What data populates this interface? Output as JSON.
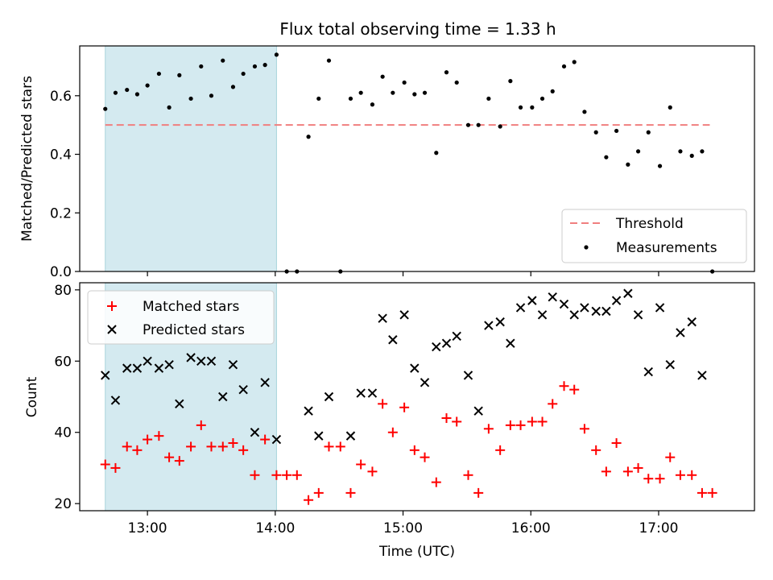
{
  "chart_data": [
    {
      "type": "scatter",
      "title": "Flux total observing time = 1.33 h",
      "ylabel": "Matched/Predicted stars",
      "xlabel": "",
      "x_range_hours": [
        12.47,
        17.75
      ],
      "ylim": [
        0,
        0.77
      ],
      "yticks": [
        0.0,
        0.2,
        0.4,
        0.6
      ],
      "ytick_labels": [
        "0.0",
        "0.2",
        "0.4",
        "0.6"
      ],
      "highlight_span_hours": [
        12.67,
        14.01
      ],
      "highlight_color": "#d4eaf0",
      "threshold": {
        "value": 0.5,
        "x_start": 12.67,
        "x_end": 17.4,
        "color": "#f07f7f"
      },
      "legend": {
        "placement": "lower-right",
        "entries": [
          "Threshold",
          "Measurements"
        ]
      },
      "series": [
        {
          "name": "Measurements",
          "color": "#000000",
          "x": [
            12.67,
            12.75,
            12.84,
            12.92,
            13.0,
            13.09,
            13.17,
            13.25,
            13.34,
            13.42,
            13.5,
            13.59,
            13.67,
            13.75,
            13.84,
            13.92,
            14.01,
            14.09,
            14.17,
            14.26,
            14.34,
            14.42,
            14.51,
            14.59,
            14.67,
            14.76,
            14.84,
            14.92,
            15.01,
            15.09,
            15.17,
            15.26,
            15.34,
            15.42,
            15.51,
            15.59,
            15.67,
            15.76,
            15.84,
            15.92,
            16.01,
            16.09,
            16.17,
            16.26,
            16.34,
            16.42,
            16.51,
            16.59,
            16.67,
            16.76,
            16.84,
            16.92,
            17.01,
            17.09,
            17.17,
            17.26,
            17.34,
            17.42
          ],
          "y": [
            0.555,
            0.61,
            0.62,
            0.605,
            0.635,
            0.675,
            0.56,
            0.67,
            0.59,
            0.7,
            0.6,
            0.72,
            0.63,
            0.675,
            0.7,
            0.705,
            0.74,
            0.0,
            0.0,
            0.46,
            0.59,
            0.72,
            0.0,
            0.59,
            0.61,
            0.57,
            0.665,
            0.61,
            0.645,
            0.605,
            0.61,
            0.405,
            0.68,
            0.645,
            0.5,
            0.5,
            0.59,
            0.495,
            0.65,
            0.56,
            0.56,
            0.59,
            0.615,
            0.7,
            0.715,
            0.545,
            0.475,
            0.39,
            0.48,
            0.365,
            0.41,
            0.475,
            0.36,
            0.56,
            0.41,
            0.395,
            0.41,
            0.0
          ]
        }
      ]
    },
    {
      "type": "scatter",
      "title": "",
      "ylabel": "Count",
      "xlabel": "Time (UTC)",
      "x_range_hours": [
        12.47,
        17.75
      ],
      "xticks_hours": [
        13,
        14,
        15,
        16,
        17
      ],
      "xtick_labels": [
        "13:00",
        "14:00",
        "15:00",
        "16:00",
        "17:00"
      ],
      "ylim": [
        18,
        82
      ],
      "yticks": [
        20,
        40,
        60,
        80
      ],
      "ytick_labels": [
        "20",
        "40",
        "60",
        "80"
      ],
      "highlight_span_hours": [
        12.67,
        14.01
      ],
      "highlight_color": "#d4eaf0",
      "legend": {
        "placement": "upper-left",
        "entries": [
          "Matched stars",
          "Predicted stars"
        ]
      },
      "series": [
        {
          "name": "Matched stars",
          "marker": "plus",
          "color": "#ff0000",
          "x": [
            12.67,
            12.75,
            12.84,
            12.92,
            13.0,
            13.09,
            13.17,
            13.25,
            13.34,
            13.42,
            13.5,
            13.59,
            13.67,
            13.75,
            13.84,
            13.92,
            14.01,
            14.09,
            14.17,
            14.26,
            14.34,
            14.42,
            14.51,
            14.59,
            14.67,
            14.76,
            14.84,
            14.92,
            15.01,
            15.09,
            15.17,
            15.26,
            15.34,
            15.42,
            15.51,
            15.59,
            15.67,
            15.76,
            15.84,
            15.92,
            16.01,
            16.09,
            16.17,
            16.26,
            16.34,
            16.42,
            16.51,
            16.59,
            16.67,
            16.76,
            16.84,
            16.92,
            17.01,
            17.09,
            17.17,
            17.26,
            17.34,
            17.42
          ],
          "y": [
            31,
            30,
            36,
            35,
            38,
            39,
            33,
            32,
            36,
            42,
            36,
            36,
            37,
            35,
            28,
            38,
            28,
            28,
            28,
            21,
            23,
            36,
            36,
            23,
            31,
            29,
            48,
            40,
            47,
            35,
            33,
            26,
            44,
            43,
            28,
            23,
            41,
            35,
            42,
            42,
            43,
            43,
            48,
            53,
            52,
            41,
            35,
            29,
            37,
            29,
            30,
            27,
            27,
            33,
            28,
            28,
            23,
            23
          ]
        },
        {
          "name": "Predicted stars",
          "marker": "x",
          "color": "#000000",
          "x": [
            12.67,
            12.75,
            12.84,
            12.92,
            13.0,
            13.09,
            13.17,
            13.25,
            13.34,
            13.42,
            13.5,
            13.59,
            13.67,
            13.75,
            13.84,
            13.92,
            14.01,
            14.26,
            14.34,
            14.42,
            14.59,
            14.67,
            14.76,
            14.84,
            14.92,
            15.01,
            15.09,
            15.17,
            15.26,
            15.34,
            15.42,
            15.51,
            15.59,
            15.67,
            15.76,
            15.84,
            15.92,
            16.01,
            16.09,
            16.17,
            16.26,
            16.34,
            16.42,
            16.51,
            16.59,
            16.67,
            16.76,
            16.84,
            16.92,
            17.01,
            17.09,
            17.17,
            17.26,
            17.34
          ],
          "y": [
            56,
            49,
            58,
            58,
            60,
            58,
            59,
            48,
            61,
            60,
            60,
            50,
            59,
            52,
            40,
            54,
            38,
            46,
            39,
            50,
            39,
            51,
            51,
            72,
            66,
            73,
            58,
            54,
            64,
            65,
            67,
            56,
            46,
            70,
            71,
            65,
            75,
            77,
            73,
            78,
            76,
            73,
            75,
            74,
            74,
            77,
            79,
            73,
            57,
            75,
            59,
            68,
            71,
            56
          ]
        }
      ]
    }
  ]
}
